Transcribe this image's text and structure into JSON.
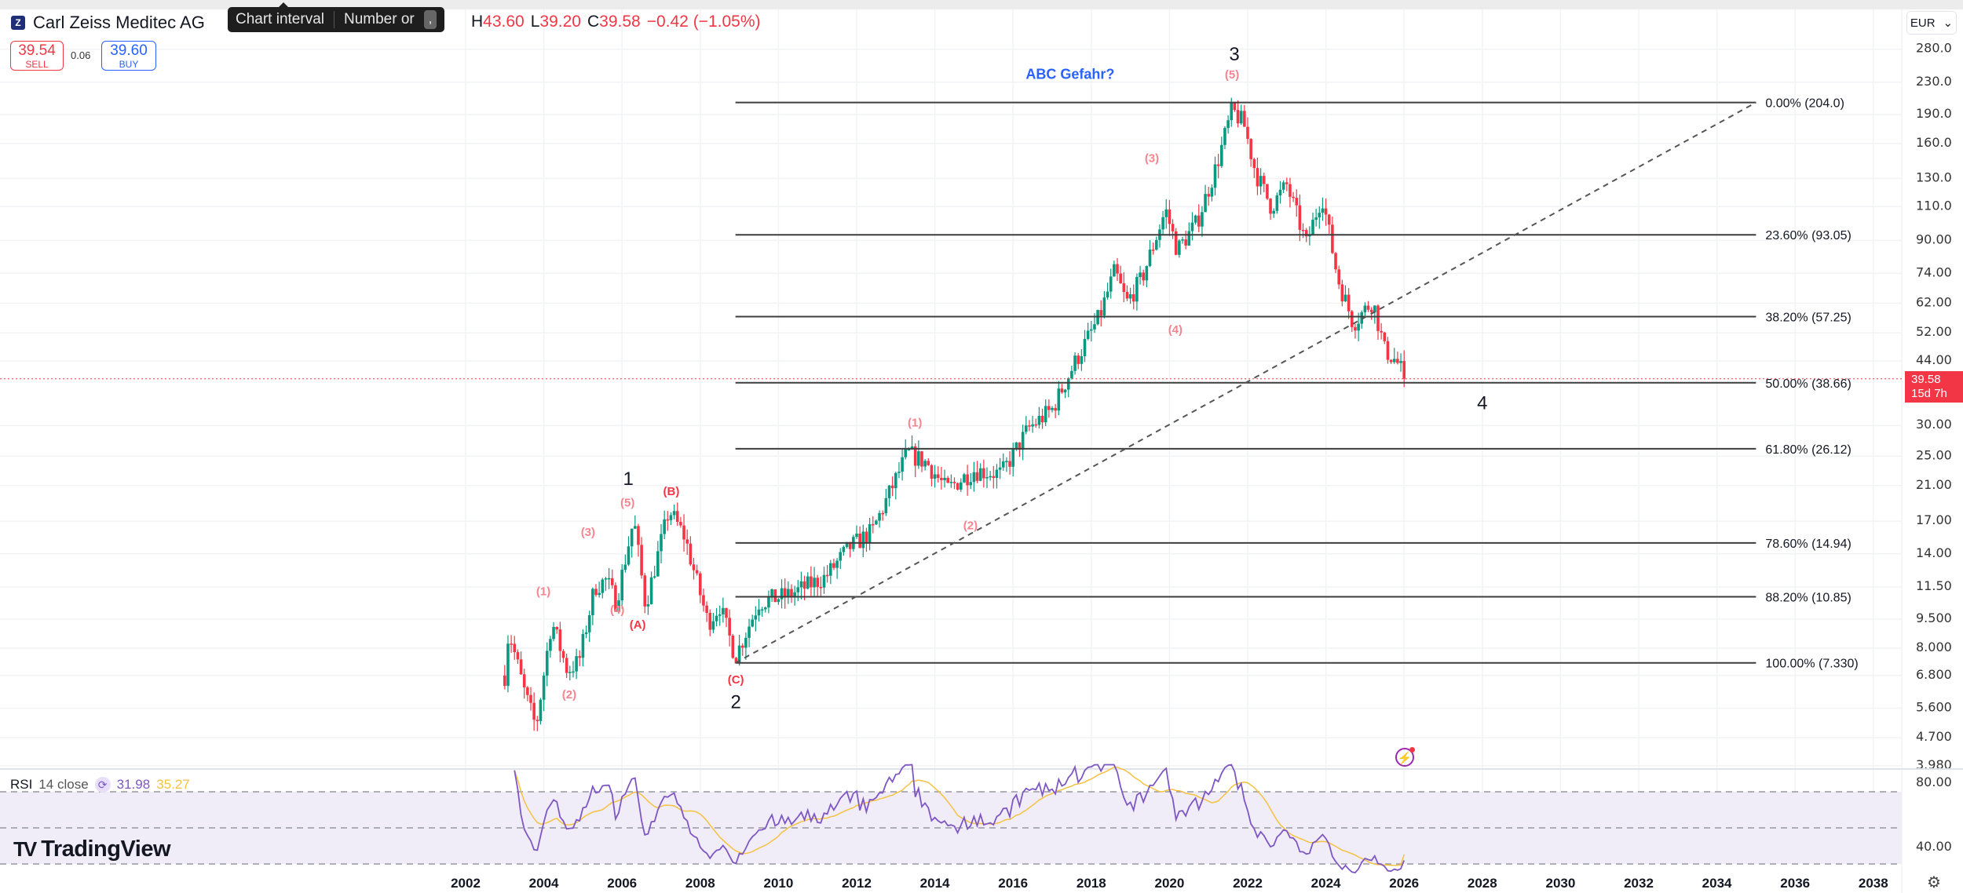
{
  "header": {
    "symbol_icon": "Z",
    "title": "Carl Zeiss Meditec AG",
    "ohlc": {
      "h_label": "H",
      "h": "43.60",
      "l_label": "L",
      "l": "39.20",
      "c_label": "C",
      "c": "39.58",
      "change": "−0.42 (−1.05%)"
    },
    "tooltip": {
      "label": "Chart interval",
      "hint": "Number or",
      "key": ","
    }
  },
  "trade": {
    "sell_price": "39.54",
    "sell_label": "SELL",
    "spread": "0.06",
    "buy_price": "39.60",
    "buy_label": "BUY"
  },
  "currency": "EUR",
  "current_price": {
    "value": "39.58",
    "countdown": "15d 7h",
    "price": 39.58
  },
  "rsi_legend": {
    "name": "RSI",
    "params": "14 close",
    "rsi": "31.98",
    "ma": "35.27"
  },
  "logo": "TradingView",
  "colors": {
    "up": "#089981",
    "down": "#f23645",
    "rsi": "#7e57c2",
    "rsi_ma": "#f5c242",
    "fib": "#3d3d3d",
    "wave_minor": "#f7848f",
    "wave_abc": "#f23645",
    "annotation": "#2962ff"
  },
  "chart_data": {
    "type": "candlestick",
    "title": "Carl Zeiss Meditec AG",
    "interval": "1M",
    "y_scale": "log",
    "ylim": [
      3.98,
      280
    ],
    "xlim": [
      2001.5,
      2039.2
    ],
    "price_ticks": [
      "280.0",
      "230.0",
      "190.0",
      "160.0",
      "130.0",
      "110.0",
      "90.00",
      "74.00",
      "62.00",
      "52.00",
      "44.00",
      "30.00",
      "25.00",
      "21.00",
      "17.00",
      "14.00",
      "11.50",
      "9.500",
      "8.000",
      "6.800",
      "5.600",
      "4.700",
      "3.980"
    ],
    "year_ticks": [
      "2002",
      "2004",
      "2006",
      "2008",
      "2010",
      "2012",
      "2014",
      "2016",
      "2018",
      "2020",
      "2022",
      "2024",
      "2026",
      "2028",
      "2030",
      "2032",
      "2034",
      "2036",
      "2038"
    ],
    "price_path_anchors": [
      [
        2003.0,
        6.8
      ],
      [
        2003.1,
        8.9
      ],
      [
        2003.5,
        6.2
      ],
      [
        2003.8,
        5.0
      ],
      [
        2004.2,
        9.4
      ],
      [
        2004.6,
        7.0
      ],
      [
        2004.9,
        7.4
      ],
      [
        2005.3,
        11.5
      ],
      [
        2005.6,
        12.0
      ],
      [
        2005.85,
        10.5
      ],
      [
        2006.3,
        17.2
      ],
      [
        2006.6,
        10.3
      ],
      [
        2007.2,
        18.2
      ],
      [
        2007.6,
        15.5
      ],
      [
        2008.2,
        9.3
      ],
      [
        2008.5,
        10.3
      ],
      [
        2008.9,
        7.6
      ],
      [
        2009.5,
        10.5
      ],
      [
        2010.3,
        11.0
      ],
      [
        2011.2,
        12.2
      ],
      [
        2011.8,
        14.5
      ],
      [
        2012.4,
        16.0
      ],
      [
        2013.3,
        25.5
      ],
      [
        2013.8,
        24.0
      ],
      [
        2014.3,
        20.5
      ],
      [
        2015.0,
        23.0
      ],
      [
        2015.7,
        22.5
      ],
      [
        2016.4,
        29.5
      ],
      [
        2017.0,
        33.0
      ],
      [
        2017.6,
        44.0
      ],
      [
        2018.2,
        57.0
      ],
      [
        2018.6,
        75.0
      ],
      [
        2018.9,
        62.0
      ],
      [
        2019.3,
        72.0
      ],
      [
        2019.9,
        108.0
      ],
      [
        2020.2,
        85.0
      ],
      [
        2020.7,
        100.0
      ],
      [
        2021.2,
        140.0
      ],
      [
        2021.6,
        195.0
      ],
      [
        2021.9,
        180.0
      ],
      [
        2022.2,
        135.0
      ],
      [
        2022.6,
        110.0
      ],
      [
        2023.0,
        125.0
      ],
      [
        2023.5,
        88.0
      ],
      [
        2023.9,
        118.0
      ],
      [
        2024.3,
        72.0
      ],
      [
        2024.7,
        55.0
      ],
      [
        2025.2,
        63.0
      ],
      [
        2025.5,
        47.0
      ],
      [
        2025.8,
        44.0
      ],
      [
        2026.05,
        39.58
      ]
    ],
    "fib_retracement": [
      {
        "ratio": "0.00%",
        "price": 204.0,
        "label": "0.00% (204.0)"
      },
      {
        "ratio": "23.60%",
        "price": 93.05,
        "label": "23.60% (93.05)"
      },
      {
        "ratio": "38.20%",
        "price": 57.25,
        "label": "38.20% (57.25)"
      },
      {
        "ratio": "50.00%",
        "price": 38.66,
        "label": "50.00% (38.66)"
      },
      {
        "ratio": "61.80%",
        "price": 26.12,
        "label": "61.80% (26.12)"
      },
      {
        "ratio": "78.60%",
        "price": 14.94,
        "label": "78.60% (14.94)"
      },
      {
        "ratio": "88.20%",
        "price": 10.85,
        "label": "88.20% (10.85)"
      },
      {
        "ratio": "100.00%",
        "price": 7.33,
        "label": "100.00% (7.330)"
      }
    ],
    "fib_range": {
      "start_year": 2008.9,
      "end_year": 2035.0
    },
    "trend_line": {
      "from": [
        2008.9,
        7.33
      ],
      "to": [
        2035.0,
        204.0
      ],
      "style": "dashed"
    },
    "wave_labels": [
      {
        "text": "3",
        "date": 2021.66,
        "price": 270,
        "style": "major"
      },
      {
        "text": "(5)",
        "date": 2021.6,
        "price": 240,
        "style": "minor"
      },
      {
        "text": "(3)",
        "date": 2019.55,
        "price": 146,
        "style": "minor"
      },
      {
        "text": "(4)",
        "date": 2020.15,
        "price": 52.8,
        "style": "minor"
      },
      {
        "text": "4",
        "date": 2028.0,
        "price": 34.0,
        "style": "major"
      },
      {
        "text": "(1)",
        "date": 2013.49,
        "price": 30.4,
        "style": "minor"
      },
      {
        "text": "(2)",
        "date": 2014.91,
        "price": 16.5,
        "style": "minor"
      },
      {
        "text": "1",
        "date": 2006.16,
        "price": 21.7,
        "style": "major"
      },
      {
        "text": "(5)",
        "date": 2006.14,
        "price": 18.9,
        "style": "minor"
      },
      {
        "text": "(B)",
        "date": 2007.26,
        "price": 20.2,
        "style": "abc"
      },
      {
        "text": "(3)",
        "date": 2005.13,
        "price": 15.85,
        "style": "minor"
      },
      {
        "text": "(1)",
        "date": 2003.99,
        "price": 11.17,
        "style": "minor"
      },
      {
        "text": "(4)",
        "date": 2005.88,
        "price": 10.0,
        "style": "minor"
      },
      {
        "text": "(A)",
        "date": 2006.4,
        "price": 9.15,
        "style": "abc"
      },
      {
        "text": "(2)",
        "date": 2004.65,
        "price": 6.04,
        "style": "minor"
      },
      {
        "text": "(C)",
        "date": 2008.91,
        "price": 6.6,
        "style": "abc"
      },
      {
        "text": "2",
        "date": 2008.91,
        "price": 5.77,
        "style": "major"
      }
    ],
    "annotation": {
      "text": "ABC Gefahr?",
      "date": 2017.46,
      "price": 240
    },
    "rsi": {
      "period": 14,
      "source": "close",
      "levels": [
        70,
        50,
        30
      ],
      "tick_labels": [
        "80.00",
        "40.00"
      ],
      "last_rsi": 31.98,
      "last_ma": 35.27
    }
  }
}
